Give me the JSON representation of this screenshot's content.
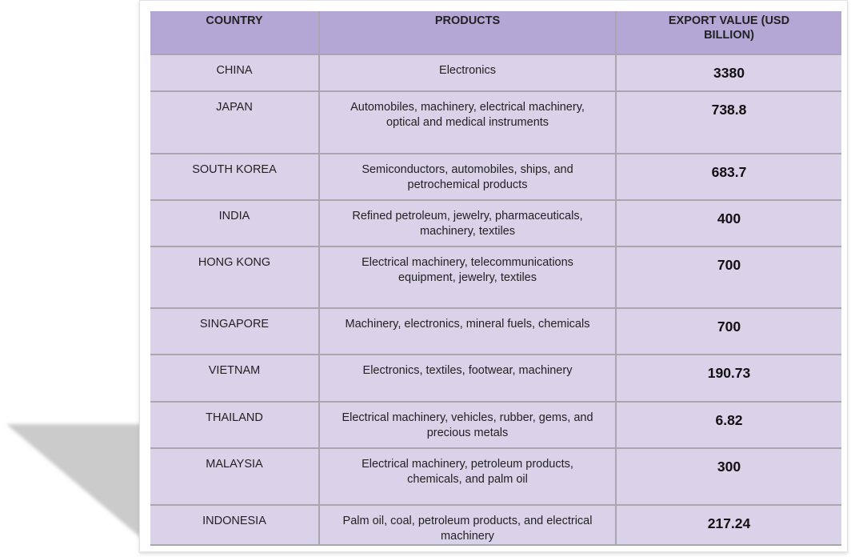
{
  "table": {
    "headers": [
      "COUNTRY",
      "PRODUCTS",
      "EXPORT VALUE (USD BILLION)"
    ],
    "rows": [
      {
        "country": "CHINA",
        "products": "Electronics",
        "value": "3380"
      },
      {
        "country": "JAPAN",
        "products": "Automobiles, machinery, electrical machinery, optical and medical instruments",
        "value": "738.8"
      },
      {
        "country": "SOUTH KOREA",
        "products": "Semiconductors, automobiles, ships, and petrochemical products",
        "value": "683.7"
      },
      {
        "country": "INDIA",
        "products": "Refined petroleum, jewelry, pharmaceuticals, machinery, textiles",
        "value": "400"
      },
      {
        "country": "HONG KONG",
        "products": "Electrical machinery, telecommunications equipment, jewelry, textiles",
        "value": "700"
      },
      {
        "country": "SINGAPORE",
        "products": "Machinery, electronics, mineral fuels, chemicals",
        "value": "700"
      },
      {
        "country": "VIETNAM",
        "products": "Electronics, textiles, footwear, machinery",
        "value": "190.73"
      },
      {
        "country": "THAILAND",
        "products": "Electrical machinery, vehicles, rubber, gems, and precious metals",
        "value": "6.82"
      },
      {
        "country": "MALAYSIA",
        "products": "Electrical machinery, petroleum products, chemicals, and  palm oil",
        "value": "300"
      },
      {
        "country": "INDONESIA",
        "products": "Palm oil, coal, petroleum products, and electrical machinery",
        "value": "217.24"
      }
    ]
  },
  "colors": {
    "header": "#b4a7d6",
    "row": "#d9d2e9",
    "border": "#a9a6ad",
    "shadow": "#cccccc"
  }
}
